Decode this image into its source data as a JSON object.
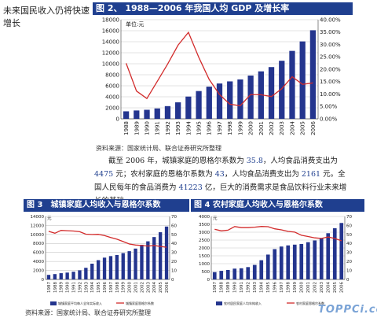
{
  "side_caption": "未来国民收入仍将快速增长",
  "chart1": {
    "title": "图 2、 1988—2006 年我国人均 GDP 及增长率",
    "unit": "单位:元",
    "source": "资料来源：国家统计局、联合证券研究所整理"
  },
  "paragraph": {
    "t1": "截至 2006 年，城镇家庭的恩格尔系数为 ",
    "v1": "35.8",
    "t2": "，人均食品消费支出为 ",
    "v2": "4475",
    "t3": " 元；农村家庭的恩格尔系数为 ",
    "v3": "43",
    "t4": "，人均食品消费支出为 ",
    "v4": "2161",
    "t5": " 元。全国人民每年的食品消费为 ",
    "v5": "41223",
    "t6": " 亿，巨大的消费需求是食品饮料行业未来增长的基础。"
  },
  "chart2": {
    "title": "图 3　城镇家庭人均收入与恩格尔系数",
    "unit": "元",
    "legend_bar": "城镇家庭平均每人全年实际收入",
    "legend_line": "城镇家庭恩格尔系数"
  },
  "chart3": {
    "title": "图 4 农村家庭人均收入与恩格尔系数",
    "unit": "元",
    "legend_bar": "农村居民家庭人均年纯收入",
    "legend_line": "农村家庭恩格尔系数"
  },
  "bottom_source": "资料来源：国家统计局、联合证券研究所整理",
  "watermark": "TOPPCi.com",
  "chart_data": [
    {
      "type": "bar",
      "chart": "chart1",
      "categories": [
        "1988",
        "1989",
        "1990",
        "1991",
        "1992",
        "1993",
        "1994",
        "1995",
        "1996",
        "1997",
        "1998",
        "1999",
        "2000",
        "2001",
        "2002",
        "2003",
        "2004",
        "2005",
        "2006"
      ],
      "series": [
        {
          "axis": "left",
          "type": "bar",
          "values": [
            1366,
            1519,
            1644,
            1893,
            2311,
            2998,
            4044,
            5046,
            5846,
            6420,
            6796,
            7159,
            7858,
            8622,
            9398,
            10542,
            12336,
            14053,
            16084
          ]
        },
        {
          "axis": "right",
          "type": "line",
          "unit": "%",
          "values": [
            22.4,
            11.2,
            8.2,
            15.1,
            22.1,
            29.7,
            34.9,
            24.8,
            15.9,
            9.8,
            5.9,
            5.3,
            9.8,
            9.7,
            9.0,
            12.2,
            17.0,
            13.9,
            14.5
          ]
        }
      ],
      "ylim_left": [
        0,
        18000
      ],
      "yticks_left": [
        0,
        2000,
        4000,
        6000,
        8000,
        10000,
        12000,
        14000,
        16000,
        18000
      ],
      "ylim_right": [
        0,
        40
      ],
      "yticks_right": [
        "0.00%",
        "5.00%",
        "10.00%",
        "15.00%",
        "20.00%",
        "25.00%",
        "30.00%",
        "35.00%",
        "40.00%"
      ],
      "colors": {
        "bar": "#24358e",
        "line": "#d22b2b"
      }
    },
    {
      "type": "bar",
      "chart": "chart2",
      "categories": [
        "1987",
        "1988",
        "1989",
        "1990",
        "1991",
        "1992",
        "1993",
        "1994",
        "1995",
        "1996",
        "1997",
        "1998",
        "1999",
        "2000",
        "2001",
        "2002",
        "2003",
        "2004",
        "2005",
        "2006"
      ],
      "series": [
        {
          "axis": "left",
          "type": "bar",
          "name": "城镇家庭平均每人全年实际收入",
          "values": [
            1012,
            1192,
            1388,
            1523,
            1713,
            2032,
            2583,
            3502,
            4288,
            4844,
            5189,
            5425,
            5854,
            6280,
            6860,
            7703,
            8472,
            9422,
            10493,
            11759
          ]
        },
        {
          "axis": "right",
          "type": "line",
          "name": "城镇家庭恩格尔系数",
          "values": [
            53.5,
            51.4,
            54.5,
            54.2,
            53.8,
            53.0,
            50.3,
            50.0,
            50.1,
            48.8,
            46.6,
            44.7,
            42.1,
            39.4,
            38.2,
            37.7,
            37.1,
            37.7,
            36.7,
            35.8
          ]
        }
      ],
      "ylim_left": [
        0,
        14000
      ],
      "yticks_left": [
        0,
        2000,
        4000,
        6000,
        8000,
        10000,
        12000,
        14000
      ],
      "ylim_right": [
        0,
        70
      ],
      "yticks_right": [
        0,
        10,
        20,
        30,
        40,
        50,
        60,
        70
      ],
      "colors": {
        "bar": "#24358e",
        "line": "#d22b2b"
      }
    },
    {
      "type": "bar",
      "chart": "chart3",
      "categories": [
        "1987",
        "1988",
        "1989",
        "1990",
        "1991",
        "1992",
        "1993",
        "1994",
        "1995",
        "1996",
        "1997",
        "1998",
        "1999",
        "2000",
        "2001",
        "2002",
        "2003",
        "2004",
        "2005",
        "2006"
      ],
      "series": [
        {
          "axis": "left",
          "type": "bar",
          "name": "农村居民家庭人均年纯收入",
          "values": [
            463,
            545,
            602,
            686,
            709,
            784,
            922,
            1221,
            1578,
            1926,
            2090,
            2162,
            2210,
            2253,
            2366,
            2476,
            2622,
            2936,
            3255,
            3587
          ]
        },
        {
          "axis": "right",
          "type": "line",
          "name": "农村家庭恩格尔系数",
          "values": [
            55.8,
            54.0,
            54.8,
            58.8,
            57.6,
            57.6,
            58.1,
            58.9,
            58.6,
            56.3,
            55.1,
            53.4,
            52.6,
            49.1,
            47.7,
            46.2,
            45.6,
            47.2,
            45.5,
            43.0
          ]
        }
      ],
      "ylim_left": [
        0,
        4000
      ],
      "yticks_left": [
        0,
        500,
        1000,
        1500,
        2000,
        2500,
        3000,
        3500,
        4000
      ],
      "ylim_right": [
        0,
        70
      ],
      "yticks_right": [
        0,
        10,
        20,
        30,
        40,
        50,
        60,
        70
      ],
      "colors": {
        "bar": "#24358e",
        "line": "#d22b2b"
      }
    }
  ]
}
